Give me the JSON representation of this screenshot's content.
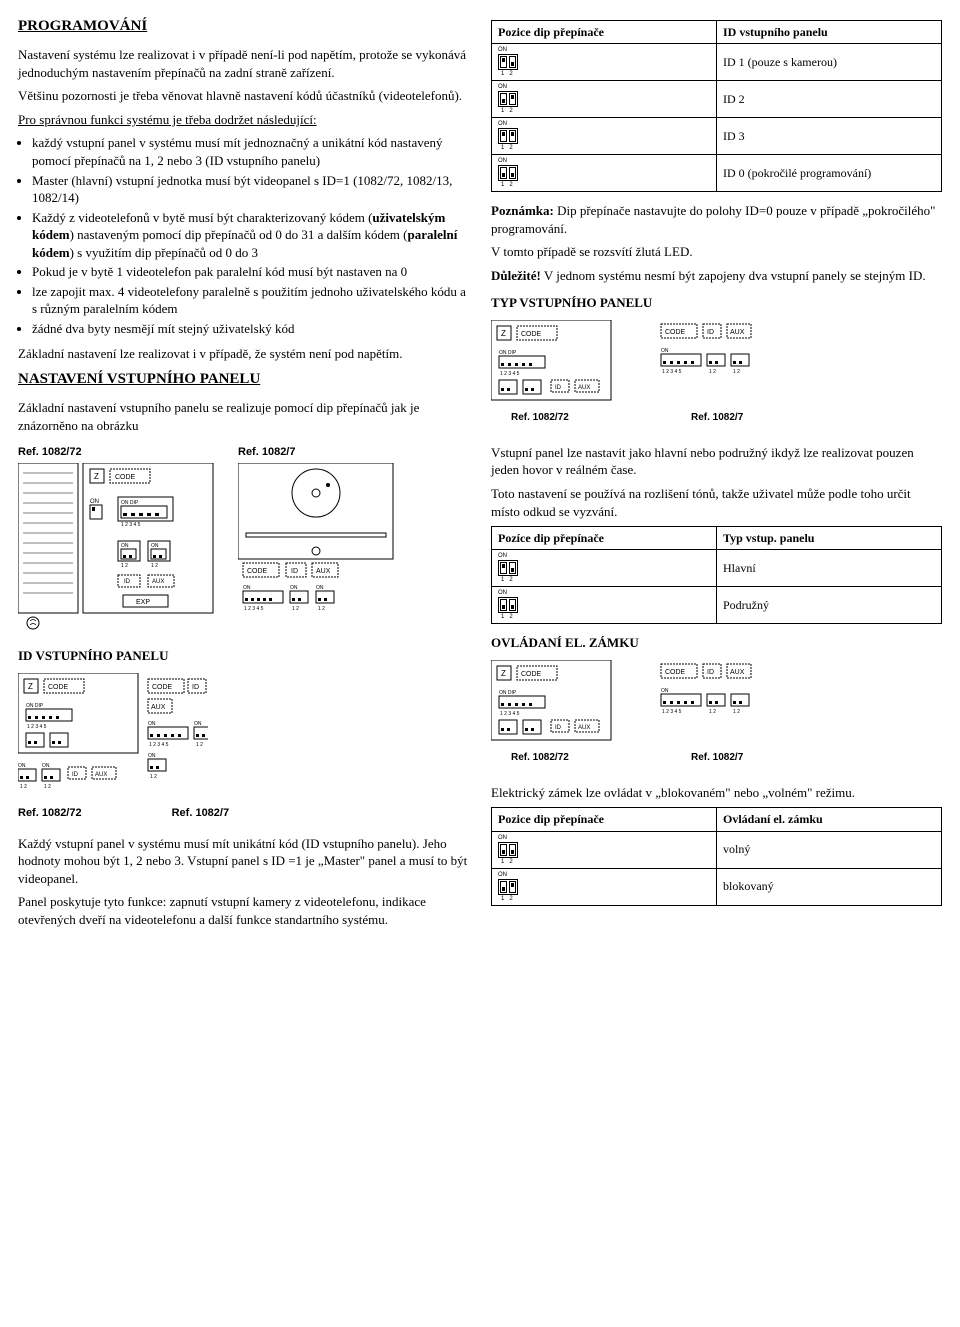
{
  "left": {
    "h1": "PROGRAMOVÁNÍ",
    "p1": "Nastavení systému lze realizovat i v případě není-li pod napětím, protože se vykonává jednoduchým nastavením přepínačů na zadní straně zařízení.",
    "p2": "Většinu pozornosti je třeba věnovat hlavně nastavení kódů účastníků (videotelefonů).",
    "p3_lead": "Pro správnou funkci systému je třeba dodržet následující:",
    "bullets": [
      "každý vstupní panel v systému musí mít jednoznačný a unikátní kód nastavený pomocí přepínačů na 1, 2 nebo 3 (ID vstupního panelu)",
      "Master (hlavní) vstupní jednotka musí být videopanel s ID=1 (1082/72, 1082/13, 1082/14)",
      "Každý z videotelefonů v bytě musí být charakterizovaný kódem (uživatelským kódem) nastaveným pomocí dip přepínačů od 0 do 31 a dalším kódem (paralelní kódem) s využitím dip přepínačů od 0 do 3",
      "Pokud je v bytě 1 videotelefon pak paralelní kód musí být nastaven na 0",
      "lze zapojit max. 4 videotelefony paralelně s použitím jednoho uživatelského kódu a s různým paralelním kódem",
      "žádné dva byty nesmějí mít stejný uživatelský kód"
    ],
    "bullet3_bold1": "uživatelským kódem",
    "bullet3_bold2": "paralelní kódem",
    "p4": "Základní nastavení lze realizovat i v případě, že systém není pod napětím.",
    "h2_nast": "NASTAVENÍ VSTUPNÍHO PANELU",
    "p5": "Základní nastavení vstupního panelu se realizuje pomocí dip přepínačů jak je znázorněno na obrázku",
    "ref1": "Ref. 1082/72",
    "ref2": "Ref. 1082/7",
    "h2_id": "ID VSTUPNÍHO PANELU",
    "p6": "Každý vstupní panel v systému musí mít unikátní kód (ID vstupního panelu). Jeho hodnoty mohou být 1, 2 nebo 3. Vstupní panel s ID =1 je „Master\" panel a musí to být videopanel.",
    "p7": "Panel poskytuje tyto funkce: zapnutí vstupní kamery z videotelefonu, indikace otevřených dveří na videotelefonu a další funkce standartního systému."
  },
  "right": {
    "id_table": {
      "h1": "Pozice dip přepínače",
      "h2": "ID vstupního panelu",
      "rows": [
        {
          "sw": [
            "on",
            "off"
          ],
          "val": "ID 1 (pouze s kamerou)"
        },
        {
          "sw": [
            "off",
            "on"
          ],
          "val": "ID 2"
        },
        {
          "sw": [
            "on",
            "on"
          ],
          "val": "ID 3"
        },
        {
          "sw": [
            "off",
            "off"
          ],
          "val": "ID 0 (pokročilé programování)"
        }
      ]
    },
    "note1_label": "Poznámka:",
    "note1": " Dip přepínače nastavujte do polohy ID=0 pouze v případě „pokročilého\" programování.",
    "note1b": "V tomto případě se rozsvítí žlutá LED.",
    "imp_label": "Důležité!",
    "imp": " V jednom systému nesmí být zapojeny dva vstupní panely se stejným ID.",
    "h2_typ": "TYP VSTUPNÍHO PANELU",
    "p_typ1": "Vstupní panel lze nastavit jako hlavní nebo podružný ikdyž lze realizovat pouzen jeden hovor v reálném čase.",
    "p_typ2": "Toto nastavení se používá na rozlišení tónů, takže uživatel může podle toho určit místo odkud se vyzvání.",
    "typ_table": {
      "h1": "Pozíce dip přepínače",
      "h2": "Typ vstup. panelu",
      "rows": [
        {
          "sw": [
            "on",
            "off"
          ],
          "val": "Hlavní"
        },
        {
          "sw": [
            "off",
            "off"
          ],
          "val": "Podružný"
        }
      ]
    },
    "h2_lock": "OVLÁDANÍ EL. ZÁMKU",
    "p_lock": "Elektrický zámek lze ovládat v „blokovaném\" nebo „volném\" režimu.",
    "lock_table": {
      "h1": "Pozice dip přepínače",
      "h2": "Ovládaní el. zámku",
      "rows": [
        {
          "sw": [
            "off",
            "off"
          ],
          "val": "volný"
        },
        {
          "sw": [
            "off",
            "on"
          ],
          "val": "blokovaný"
        }
      ]
    },
    "ref1": "Ref. 1082/72",
    "ref2": "Ref. 1082/7"
  },
  "diag_labels": {
    "z": "Z",
    "code": "CODE",
    "dip": "DIP",
    "id": "ID",
    "aux": "AUX",
    "on": "ON",
    "exp": "EXP"
  }
}
